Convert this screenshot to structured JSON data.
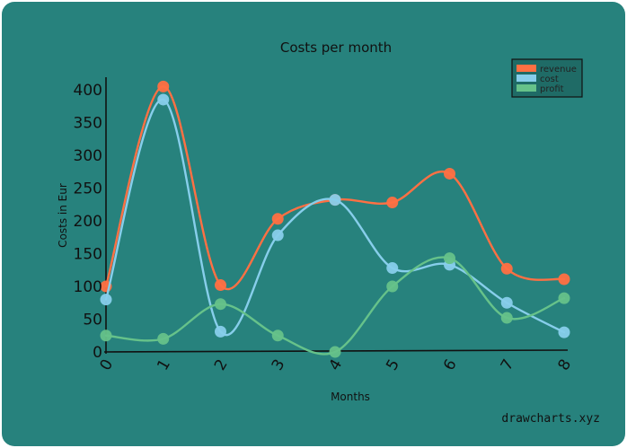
{
  "chart_data": {
    "type": "line",
    "title": "Costs per month",
    "xlabel": "Months",
    "ylabel": "Costs in Eur",
    "x": [
      0,
      1,
      2,
      3,
      4,
      5,
      6,
      7,
      8
    ],
    "xlim": [
      0,
      8
    ],
    "ylim": [
      0,
      400
    ],
    "yticks": [
      0,
      50,
      100,
      150,
      200,
      250,
      300,
      350,
      400
    ],
    "grid": false,
    "legend_position": "top-right",
    "series": [
      {
        "name": "revenue",
        "color": "#ff7043",
        "values": [
          100,
          405,
          102,
          203,
          232,
          228,
          272,
          127,
          111
        ]
      },
      {
        "name": "cost",
        "color": "#87ceeb",
        "values": [
          80,
          385,
          31,
          178,
          232,
          128,
          133,
          75,
          30
        ]
      },
      {
        "name": "profit",
        "color": "#66c28a",
        "values": [
          25,
          20,
          73,
          25,
          0,
          100,
          143,
          52,
          82
        ]
      }
    ]
  },
  "credit": "drawcharts.xyz"
}
